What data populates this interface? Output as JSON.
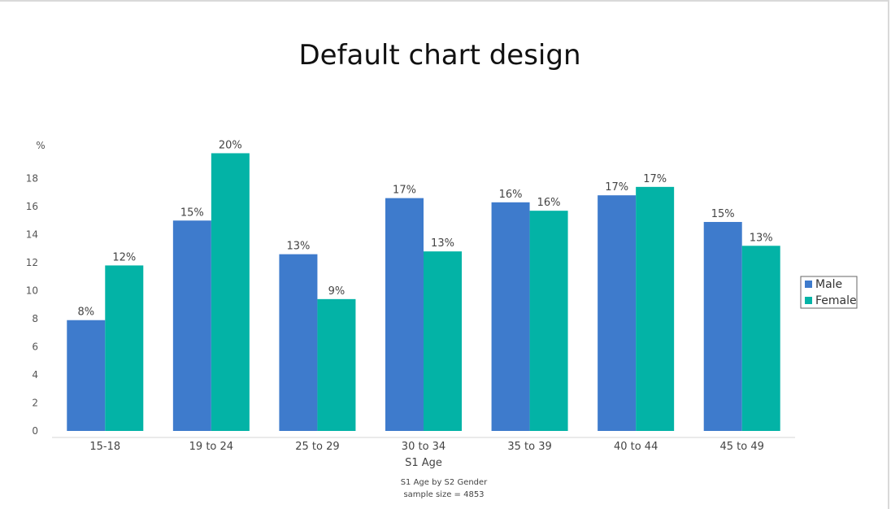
{
  "chart_data": {
    "type": "bar",
    "title": "Default chart design",
    "xlabel": "S1 Age",
    "ylabel": "%",
    "ylim": [
      0,
      20
    ],
    "yticks": [
      0,
      2,
      4,
      6,
      8,
      10,
      12,
      14,
      16,
      18
    ],
    "categories": [
      "15-18",
      "19 to 24",
      "25 to 29",
      "30 to 34",
      "35 to 39",
      "40 to 44",
      "45 to 49"
    ],
    "series": [
      {
        "name": "Male",
        "color": "#3e7bcc",
        "values": [
          7.9,
          15.0,
          12.6,
          16.6,
          16.3,
          16.8,
          14.9
        ],
        "labels": [
          "8%",
          "15%",
          "13%",
          "17%",
          "16%",
          "17%",
          "15%"
        ]
      },
      {
        "name": "Female",
        "color": "#03b3a6",
        "values": [
          11.8,
          19.8,
          9.4,
          12.8,
          15.7,
          17.4,
          13.2
        ],
        "labels": [
          "12%",
          "20%",
          "9%",
          "13%",
          "16%",
          "17%",
          "13%"
        ]
      }
    ],
    "legend_position": "right",
    "grid": false,
    "footnote": [
      "S1 Age by S2 Gender",
      "sample size = 4853"
    ]
  }
}
